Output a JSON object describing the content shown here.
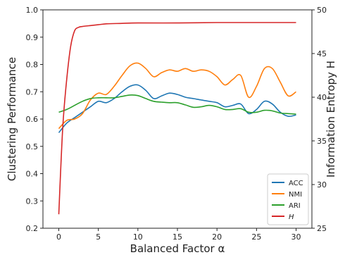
{
  "chart_data": {
    "type": "line",
    "xlabel": "Balanced Factor α",
    "ylabel_left": "Clustering Performance",
    "ylabel_right": "Information Entropy H",
    "xlim": [
      -2,
      32
    ],
    "ylim_left": [
      0.2,
      1.0
    ],
    "ylim_right": [
      25,
      50
    ],
    "x_ticks": [
      0,
      5,
      10,
      15,
      20,
      25,
      30
    ],
    "y_ticks_left": [
      0.2,
      0.3,
      0.4,
      0.5,
      0.6,
      0.7,
      0.8,
      0.9,
      1.0
    ],
    "y_ticks_left_labels": [
      "0.2",
      "0.3",
      "0.4",
      "0.5",
      "0.6",
      "0.7",
      "0.8",
      "0.9",
      "1.0"
    ],
    "y_ticks_right": [
      25,
      30,
      35,
      40,
      45,
      50
    ],
    "grid": false,
    "legend_placement": "bottom-right",
    "series": [
      {
        "name": "ACC",
        "axis": "left",
        "color": "#1f77b4",
        "x": [
          0,
          1,
          2,
          3,
          4,
          5,
          6,
          7,
          8,
          9,
          10,
          11,
          12,
          13,
          14,
          15,
          16,
          17,
          18,
          19,
          20,
          21,
          22,
          23,
          24,
          25,
          26,
          27,
          28,
          29,
          30
        ],
        "y": [
          0.55,
          0.585,
          0.605,
          0.625,
          0.645,
          0.665,
          0.66,
          0.675,
          0.7,
          0.72,
          0.725,
          0.705,
          0.675,
          0.685,
          0.695,
          0.69,
          0.68,
          0.675,
          0.67,
          0.665,
          0.66,
          0.645,
          0.65,
          0.655,
          0.62,
          0.635,
          0.665,
          0.655,
          0.625,
          0.61,
          0.615
        ]
      },
      {
        "name": "NMI",
        "axis": "left",
        "color": "#ff7f0e",
        "x": [
          0,
          1,
          2,
          3,
          4,
          5,
          6,
          7,
          8,
          9,
          10,
          11,
          12,
          13,
          14,
          15,
          16,
          17,
          18,
          19,
          20,
          21,
          22,
          23,
          24,
          25,
          26,
          27,
          28,
          29,
          30
        ],
        "y": [
          0.565,
          0.595,
          0.6,
          0.62,
          0.67,
          0.695,
          0.69,
          0.72,
          0.76,
          0.795,
          0.805,
          0.785,
          0.755,
          0.77,
          0.78,
          0.775,
          0.785,
          0.775,
          0.78,
          0.775,
          0.755,
          0.725,
          0.745,
          0.76,
          0.68,
          0.72,
          0.785,
          0.785,
          0.735,
          0.685,
          0.7
        ]
      },
      {
        "name": "ARI",
        "axis": "left",
        "color": "#2ca02c",
        "x": [
          0,
          1,
          2,
          3,
          4,
          5,
          6,
          7,
          8,
          9,
          10,
          11,
          12,
          13,
          14,
          15,
          16,
          17,
          18,
          19,
          20,
          21,
          22,
          23,
          24,
          25,
          26,
          27,
          28,
          29,
          30
        ],
        "y": [
          0.625,
          0.635,
          0.65,
          0.665,
          0.675,
          0.678,
          0.678,
          0.678,
          0.683,
          0.688,
          0.686,
          0.675,
          0.665,
          0.662,
          0.66,
          0.66,
          0.652,
          0.643,
          0.645,
          0.65,
          0.645,
          0.635,
          0.635,
          0.638,
          0.625,
          0.625,
          0.632,
          0.63,
          0.622,
          0.62,
          0.618
        ]
      },
      {
        "name": "H",
        "axis": "right",
        "color": "#d62728",
        "x": [
          0,
          0.5,
          1,
          1.5,
          2,
          2.5,
          3,
          4,
          5,
          6,
          8,
          10,
          15,
          20,
          25,
          30
        ],
        "y": [
          26.6,
          36.5,
          42.0,
          45.8,
          47.6,
          48.0,
          48.1,
          48.2,
          48.3,
          48.4,
          48.45,
          48.5,
          48.5,
          48.55,
          48.55,
          48.55
        ]
      }
    ]
  }
}
